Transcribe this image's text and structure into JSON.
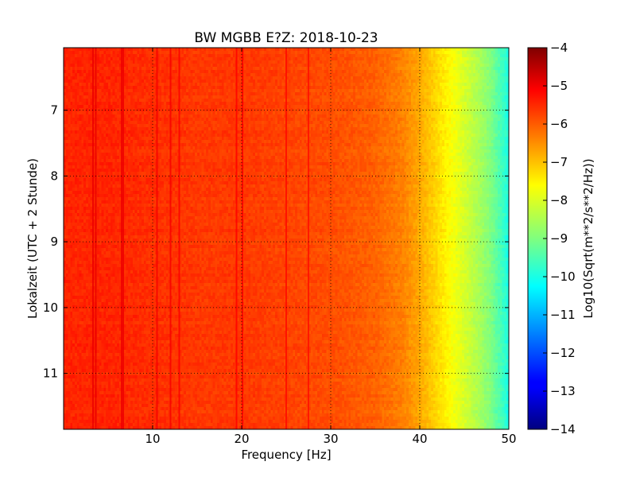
{
  "chart_data": {
    "type": "heatmap",
    "title": "BW MGBB E?Z: 2018-10-23",
    "xlabel": "Frequency [Hz]",
    "ylabel": "Lokalzeit (UTC + 2 Stunde)",
    "xlim": [
      0,
      50
    ],
    "ylim": [
      6.05,
      11.85
    ],
    "y_inverted": true,
    "x_ticks": [
      10,
      20,
      30,
      40,
      50
    ],
    "x_tick_labels": [
      "10",
      "20",
      "30",
      "40",
      "50"
    ],
    "y_ticks": [
      7,
      8,
      9,
      10,
      11
    ],
    "y_tick_labels": [
      "7",
      "8",
      "9",
      "10",
      "11"
    ],
    "grid": true,
    "colormap": "jet",
    "colorbar": {
      "label": "Log10(Sqrt(m**2/s**2/Hz))",
      "min": -14,
      "max": -4,
      "ticks": [
        -4,
        -5,
        -6,
        -7,
        -8,
        -9,
        -10,
        -11,
        -12,
        -13,
        -14
      ],
      "tick_labels": [
        "−4",
        "−5",
        "−6",
        "−7",
        "−8",
        "−9",
        "−10",
        "−11",
        "−12",
        "−13",
        "−14"
      ]
    },
    "frequency_profile_hz": [
      0,
      5,
      10,
      15,
      20,
      25,
      30,
      35,
      38,
      40,
      42,
      44,
      46,
      48,
      50
    ],
    "frequency_profile_log10": [
      -5.6,
      -5.6,
      -5.7,
      -5.8,
      -5.8,
      -5.9,
      -6.0,
      -6.2,
      -6.5,
      -6.9,
      -7.4,
      -7.9,
      -8.4,
      -9.0,
      -10.0
    ],
    "line_frequencies_hz": [
      3.3,
      3.6,
      6.5,
      6.7,
      10.5,
      12.0,
      13.0,
      19.4,
      20.1,
      25.0,
      27.5
    ]
  }
}
